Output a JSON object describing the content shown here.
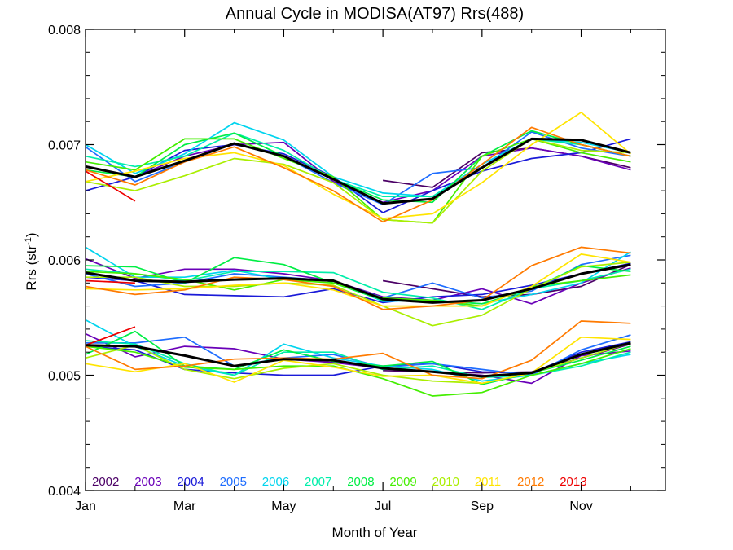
{
  "chart_data": {
    "type": "line",
    "title": "Annual Cycle in MODISA(AT97) Rrs(488)",
    "xlabel": "Month of Year",
    "ylabel_main": "Rrs (str",
    "ylabel_sup": "-1",
    "ylabel_close": ")",
    "xlim": [
      1,
      12.7
    ],
    "ylim": [
      0.004,
      0.008
    ],
    "x_ticks": [
      {
        "value": 1,
        "label": "Jan"
      },
      {
        "value": 3,
        "label": "Mar"
      },
      {
        "value": 5,
        "label": "May"
      },
      {
        "value": 7,
        "label": "Jul"
      },
      {
        "value": 9,
        "label": "Sep"
      },
      {
        "value": 11,
        "label": "Nov"
      }
    ],
    "x_minor_ticks": [
      2,
      4,
      6,
      8,
      10,
      12
    ],
    "y_ticks": [
      {
        "value": 0.004,
        "label": "0.004"
      },
      {
        "value": 0.005,
        "label": "0.005"
      },
      {
        "value": 0.006,
        "label": "0.006"
      },
      {
        "value": 0.007,
        "label": "0.007"
      },
      {
        "value": 0.008,
        "label": "0.008"
      }
    ],
    "grid": false,
    "legend_position": "bottom-left",
    "months": [
      1,
      2,
      3,
      4,
      5,
      6,
      7,
      8,
      9,
      10,
      11,
      12
    ],
    "series": [
      {
        "name": "2002",
        "color": "#4b0066",
        "years_band": [
          [
            null,
            null,
            null,
            null,
            null,
            null,
            0.00669,
            0.00663,
            0.00693,
            0.00697,
            0.0069,
            0.0068
          ],
          [
            null,
            null,
            null,
            null,
            null,
            null,
            0.00582,
            0.00575,
            0.00568,
            0.0057,
            0.00577,
            0.00596
          ],
          [
            null,
            null,
            null,
            null,
            null,
            null,
            0.00504,
            0.00503,
            0.00502,
            0.00503,
            0.00515,
            0.00527
          ]
        ]
      },
      {
        "name": "2003",
        "color": "#6a00b8",
        "years_band": [
          [
            0.00681,
            0.00672,
            0.0069,
            0.007,
            0.00702,
            0.00668,
            0.0065,
            0.0066,
            0.0069,
            0.00697,
            0.0069,
            0.00678
          ],
          [
            0.00601,
            0.00584,
            0.00592,
            0.00592,
            0.00588,
            0.00582,
            0.00568,
            0.00565,
            0.00575,
            0.00562,
            0.0058,
            0.00593
          ],
          [
            0.00536,
            0.00516,
            0.00525,
            0.00523,
            0.00514,
            0.00511,
            0.00506,
            0.00503,
            0.005,
            0.00493,
            0.00517,
            0.00521
          ]
        ]
      },
      {
        "name": "2004",
        "color": "#1a1ad8",
        "years_band": [
          [
            0.0066,
            0.00672,
            0.00695,
            0.007,
            0.00692,
            0.00672,
            0.00641,
            0.0066,
            0.00677,
            0.00688,
            0.00693,
            0.00705
          ],
          [
            0.00585,
            0.00582,
            0.0057,
            0.00569,
            0.00568,
            0.00575,
            0.00563,
            0.00568,
            0.0057,
            0.00578,
            0.00588,
            0.00597
          ],
          [
            0.00525,
            0.00522,
            0.00505,
            0.00502,
            0.005,
            0.005,
            0.00508,
            0.0051,
            0.00503,
            0.00502,
            0.0052,
            0.00529
          ]
        ]
      },
      {
        "name": "2005",
        "color": "#1e6dff",
        "years_band": [
          [
            0.00698,
            0.00668,
            0.00685,
            0.00701,
            0.0069,
            0.00667,
            0.00648,
            0.00675,
            0.0068,
            0.00711,
            0.00697,
            0.0069
          ],
          [
            0.00588,
            0.00577,
            0.0058,
            0.00588,
            0.00585,
            0.00582,
            0.00567,
            0.0058,
            0.00567,
            0.00573,
            0.00596,
            0.00604
          ],
          [
            0.00528,
            0.00528,
            0.00533,
            0.00508,
            0.00515,
            0.00518,
            0.00507,
            0.0051,
            0.00505,
            0.005,
            0.00522,
            0.00535
          ]
        ]
      },
      {
        "name": "2006",
        "color": "#00d4ee",
        "years_band": [
          [
            0.007,
            0.00675,
            0.00692,
            0.00719,
            0.00704,
            0.00672,
            0.00658,
            0.00655,
            0.00683,
            0.00705,
            0.00702,
            0.00693
          ],
          [
            0.00611,
            0.00585,
            0.00585,
            0.00591,
            0.00583,
            0.00582,
            0.00564,
            0.00565,
            0.00562,
            0.0057,
            0.0058,
            0.00607
          ],
          [
            0.00548,
            0.00525,
            0.00508,
            0.005,
            0.00527,
            0.00515,
            0.00508,
            0.00505,
            0.00495,
            0.005,
            0.0051,
            0.00518
          ]
        ]
      },
      {
        "name": "2007",
        "color": "#00eeaa",
        "years_band": [
          [
            0.0069,
            0.00681,
            0.0069,
            0.0071,
            0.00695,
            0.0067,
            0.00655,
            0.00655,
            0.0068,
            0.00705,
            0.007,
            0.0069
          ],
          [
            0.00592,
            0.00588,
            0.00582,
            0.0059,
            0.0059,
            0.00589,
            0.00572,
            0.00567,
            0.00557,
            0.00575,
            0.00582,
            0.00592
          ],
          [
            0.0053,
            0.00527,
            0.0051,
            0.005,
            0.0052,
            0.0052,
            0.00505,
            0.00508,
            0.00498,
            0.005,
            0.00508,
            0.0052
          ]
        ]
      },
      {
        "name": "2008",
        "color": "#00ee44",
        "years_band": [
          [
            0.00678,
            0.00672,
            0.007,
            0.0071,
            0.0069,
            0.0067,
            0.00652,
            0.0065,
            0.0069,
            0.00712,
            0.007,
            0.0069
          ],
          [
            0.00595,
            0.00594,
            0.0058,
            0.00602,
            0.00596,
            0.0058,
            0.00565,
            0.00565,
            0.00562,
            0.00575,
            0.00595,
            0.0059
          ],
          [
            0.00518,
            0.00538,
            0.00508,
            0.00505,
            0.00522,
            0.00512,
            0.00508,
            0.00512,
            0.00492,
            0.00502,
            0.00513,
            0.00525
          ]
        ]
      },
      {
        "name": "2009",
        "color": "#44ee00",
        "years_band": [
          [
            0.00685,
            0.00678,
            0.00705,
            0.00705,
            0.00688,
            0.00672,
            0.00635,
            0.00632,
            0.0069,
            0.00705,
            0.00693,
            0.00685
          ],
          [
            0.0059,
            0.00588,
            0.00583,
            0.00574,
            0.00583,
            0.0058,
            0.00567,
            0.00565,
            0.0056,
            0.00577,
            0.00582,
            0.00587
          ],
          [
            0.00525,
            0.0052,
            0.00507,
            0.00505,
            0.00508,
            0.00508,
            0.00497,
            0.00482,
            0.00485,
            0.005,
            0.0051,
            0.00523
          ]
        ]
      },
      {
        "name": "2010",
        "color": "#aaee00",
        "years_band": [
          [
            0.00668,
            0.0066,
            0.00673,
            0.00688,
            0.00683,
            0.00667,
            0.00635,
            0.00632,
            0.00677,
            0.00705,
            0.00695,
            0.00693
          ],
          [
            0.00585,
            0.00585,
            0.00577,
            0.00577,
            0.0058,
            0.00578,
            0.0056,
            0.00543,
            0.00552,
            0.00575,
            0.00594,
            0.00598
          ],
          [
            0.00515,
            0.00526,
            0.00505,
            0.00497,
            0.00506,
            0.0051,
            0.005,
            0.00495,
            0.00493,
            0.00502,
            0.00515,
            0.00528
          ]
        ]
      },
      {
        "name": "2011",
        "color": "#ffe400",
        "years_band": [
          [
            0.00668,
            0.00677,
            0.00688,
            0.00693,
            0.00682,
            0.00657,
            0.00636,
            0.0064,
            0.00667,
            0.007,
            0.00728,
            0.00692
          ],
          [
            0.00575,
            0.00574,
            0.00575,
            0.00578,
            0.0058,
            0.00574,
            0.0056,
            0.0056,
            0.0056,
            0.00577,
            0.00605,
            0.00598
          ],
          [
            0.0051,
            0.00503,
            0.0051,
            0.00494,
            0.00513,
            0.00507,
            0.00499,
            0.005,
            0.00493,
            0.00502,
            0.00533,
            0.00531
          ]
        ]
      },
      {
        "name": "2012",
        "color": "#ff7a00",
        "years_band": [
          [
            0.00678,
            0.00665,
            0.00685,
            0.00698,
            0.0068,
            0.0066,
            0.00633,
            0.00652,
            0.00683,
            0.00715,
            0.007,
            0.0069
          ],
          [
            0.00577,
            0.0057,
            0.00574,
            0.00585,
            0.00583,
            0.00577,
            0.00557,
            0.0056,
            0.00565,
            0.00595,
            0.00611,
            0.00606
          ],
          [
            0.00525,
            0.00505,
            0.00508,
            0.00514,
            0.00515,
            0.00514,
            0.00519,
            0.005,
            0.00497,
            0.00513,
            0.00547,
            0.00545
          ]
        ]
      },
      {
        "name": "2013",
        "color": "#ee0000",
        "years_band": [
          [
            0.00677,
            0.00651,
            null,
            null,
            null,
            null,
            null,
            null,
            null,
            null,
            null,
            null
          ],
          [
            0.00582,
            0.0058,
            null,
            null,
            null,
            null,
            null,
            null,
            null,
            null,
            null,
            null
          ],
          [
            0.00526,
            0.00542,
            null,
            null,
            null,
            null,
            null,
            null,
            null,
            null,
            null,
            null
          ]
        ]
      }
    ],
    "climatology": {
      "color": "#000000",
      "band": [
        [
          0.00681,
          0.00672,
          0.00686,
          0.00701,
          0.0069,
          0.0067,
          0.00649,
          0.00653,
          0.0068,
          0.00705,
          0.00704,
          0.00693
        ],
        [
          0.00589,
          0.00582,
          0.00581,
          0.00583,
          0.00584,
          0.00582,
          0.00566,
          0.00563,
          0.00565,
          0.00575,
          0.00588,
          0.00596
        ],
        [
          0.00526,
          0.00525,
          0.00517,
          0.00508,
          0.00514,
          0.00513,
          0.00506,
          0.00503,
          0.00499,
          0.00502,
          0.00518,
          0.00528
        ]
      ]
    }
  }
}
